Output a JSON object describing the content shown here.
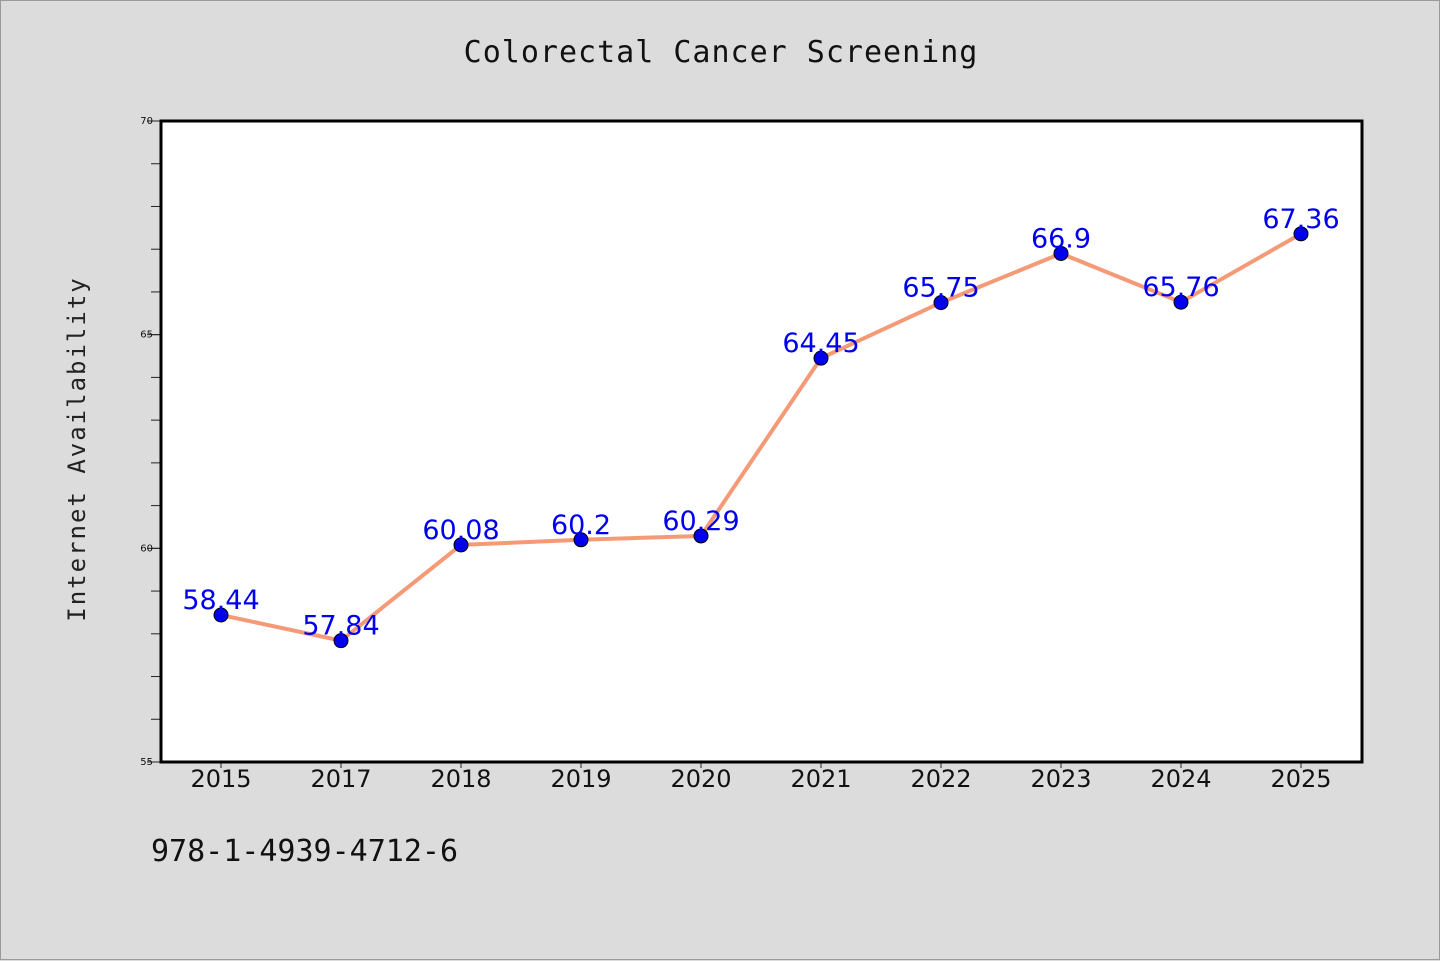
{
  "chart_data": {
    "type": "line",
    "title": "Colorectal Cancer Screening",
    "xlabel": "",
    "ylabel": "Internet Availability",
    "categories": [
      "2015",
      "2017",
      "2018",
      "2019",
      "2020",
      "2021",
      "2022",
      "2023",
      "2024",
      "2025"
    ],
    "series": [
      {
        "values": [
          58.44,
          57.84,
          60.08,
          60.2,
          60.29,
          64.45,
          65.75,
          66.9,
          65.76,
          67.36
        ],
        "labels": [
          "58.44",
          "57.84",
          "60.08",
          "60.2",
          "60.29",
          "64.45",
          "65.75",
          "66.9",
          "65.76",
          "67.36"
        ],
        "line_color": "#f59a76",
        "marker_color": "#0000ee",
        "label_color": "#0000ee"
      }
    ],
    "ylim": [
      55,
      70
    ],
    "yticks": [
      "55",
      "60",
      "65",
      "70"
    ],
    "grid": false,
    "legend": "none"
  },
  "footnote": "978-1-4939-4712-6"
}
